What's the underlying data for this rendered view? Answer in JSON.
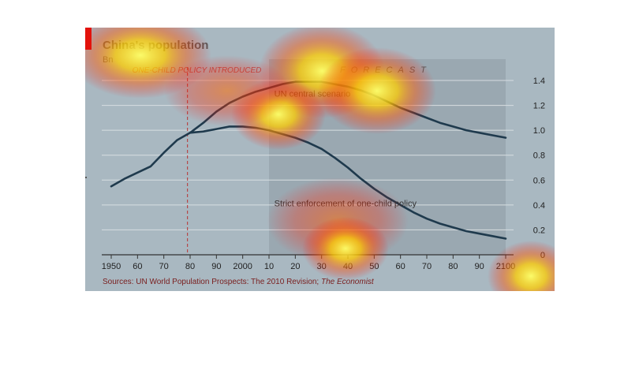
{
  "chart_data": {
    "type": "line",
    "title": "China's population",
    "unit_label": "Bn",
    "forecast_label": "FORECAST",
    "policy_label": "ONE-CHILD POLICY INTRODUCED",
    "policy_year": 1979,
    "forecast_start": 2010,
    "x_ticks": [
      "1950",
      "60",
      "70",
      "80",
      "90",
      "2000",
      "10",
      "20",
      "30",
      "40",
      "50",
      "60",
      "70",
      "80",
      "90",
      "2100"
    ],
    "y_ticks": [
      "0",
      "0.2",
      "0.4",
      "0.6",
      "0.8",
      "1.0",
      "1.2",
      "1.4"
    ],
    "xlim": [
      1950,
      2100
    ],
    "ylim": [
      0,
      1.4
    ],
    "series": [
      {
        "name": "UN central scenario",
        "color": "#1f3a4d",
        "x": [
          1950,
          1955,
          1960,
          1965,
          1970,
          1975,
          1980,
          1985,
          1990,
          1995,
          2000,
          2005,
          2010,
          2015,
          2020,
          2025,
          2030,
          2035,
          2040,
          2045,
          2050,
          2055,
          2060,
          2065,
          2070,
          2075,
          2080,
          2085,
          2090,
          2095,
          2100
        ],
        "y": [
          0.55,
          0.61,
          0.66,
          0.71,
          0.82,
          0.92,
          0.98,
          1.06,
          1.15,
          1.22,
          1.27,
          1.31,
          1.34,
          1.37,
          1.39,
          1.39,
          1.39,
          1.37,
          1.35,
          1.32,
          1.28,
          1.23,
          1.18,
          1.14,
          1.1,
          1.06,
          1.03,
          1.0,
          0.98,
          0.96,
          0.94
        ]
      },
      {
        "name": "Strict enforcement of one-child policy",
        "color": "#1f3a4d",
        "x": [
          1980,
          1985,
          1990,
          1995,
          2000,
          2005,
          2010,
          2015,
          2020,
          2025,
          2030,
          2035,
          2040,
          2045,
          2050,
          2055,
          2060,
          2065,
          2070,
          2075,
          2080,
          2085,
          2090,
          2095,
          2100
        ],
        "y": [
          0.98,
          0.99,
          1.01,
          1.03,
          1.03,
          1.02,
          1.0,
          0.97,
          0.94,
          0.9,
          0.85,
          0.78,
          0.7,
          0.61,
          0.53,
          0.46,
          0.4,
          0.34,
          0.29,
          0.25,
          0.22,
          0.19,
          0.17,
          0.15,
          0.13
        ]
      }
    ],
    "source_prefix": "Sources: UN World Population Prospects: The 2010 Revision; ",
    "source_italic": "The Economist"
  },
  "heatmap_overlay": true
}
